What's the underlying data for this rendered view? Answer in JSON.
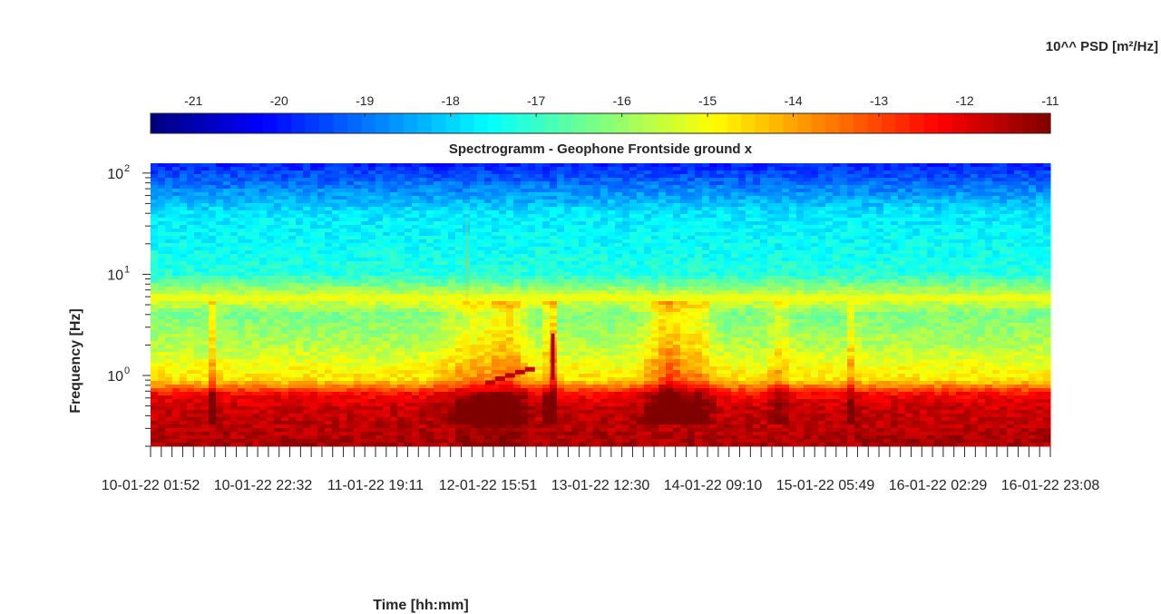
{
  "chart_data": {
    "type": "heatmap",
    "title": "Spectrogramm - Geophone Frontside ground x",
    "xlabel": "Time [hh:mm]",
    "ylabel": "Frequency [Hz]",
    "colorbar_label": "10^^ PSD [m²/Hz]",
    "colormap": "jet",
    "colorbar_range": [
      -21.5,
      -11
    ],
    "colorbar_ticks": [
      "-21",
      "-20",
      "-19",
      "-18",
      "-17",
      "-16",
      "-15",
      "-14",
      "-13",
      "-12",
      "-11"
    ],
    "colorbar_tick_values": [
      -21,
      -20,
      -19,
      -18,
      -17,
      -16,
      -15,
      -14,
      -13,
      -12,
      -11
    ],
    "yscale": "log",
    "ylim": [
      0.2,
      125
    ],
    "ytick_values": [
      1,
      10,
      100
    ],
    "y_ticks": [
      {
        "base": "10",
        "exp": "0"
      },
      {
        "base": "10",
        "exp": "1"
      },
      {
        "base": "10",
        "exp": "2"
      }
    ],
    "xlim": [
      "10-01-22 01:52",
      "16-01-22 23:08"
    ],
    "x_tick_labels": [
      {
        "date": "10-01-22",
        "time": "01:52"
      },
      {
        "date": "10-01-22",
        "time": "22:32"
      },
      {
        "date": "11-01-22",
        "time": "19:11"
      },
      {
        "date": "12-01-22",
        "time": "15:51"
      },
      {
        "date": "13-01-22",
        "time": "12:30"
      },
      {
        "date": "14-01-22",
        "time": "09:10"
      },
      {
        "date": "15-01-22",
        "time": "05:49"
      },
      {
        "date": "16-01-22",
        "time": "02:29"
      },
      {
        "date": "16-01-22",
        "time": "23:08"
      }
    ],
    "psd_profile_log10": [
      {
        "freq_hz": 0.2,
        "psd": -11.4
      },
      {
        "freq_hz": 0.5,
        "psd": -11.8
      },
      {
        "freq_hz": 0.65,
        "psd": -12.3
      },
      {
        "freq_hz": 0.9,
        "psd": -14.6
      },
      {
        "freq_hz": 2,
        "psd": -15.7
      },
      {
        "freq_hz": 4,
        "psd": -16.3
      },
      {
        "freq_hz": 5.8,
        "psd": -15.2
      },
      {
        "freq_hz": 10,
        "psd": -17.2
      },
      {
        "freq_hz": 40,
        "psd": -17.8
      },
      {
        "freq_hz": 125,
        "psd": -19.9
      }
    ],
    "grid": false
  }
}
